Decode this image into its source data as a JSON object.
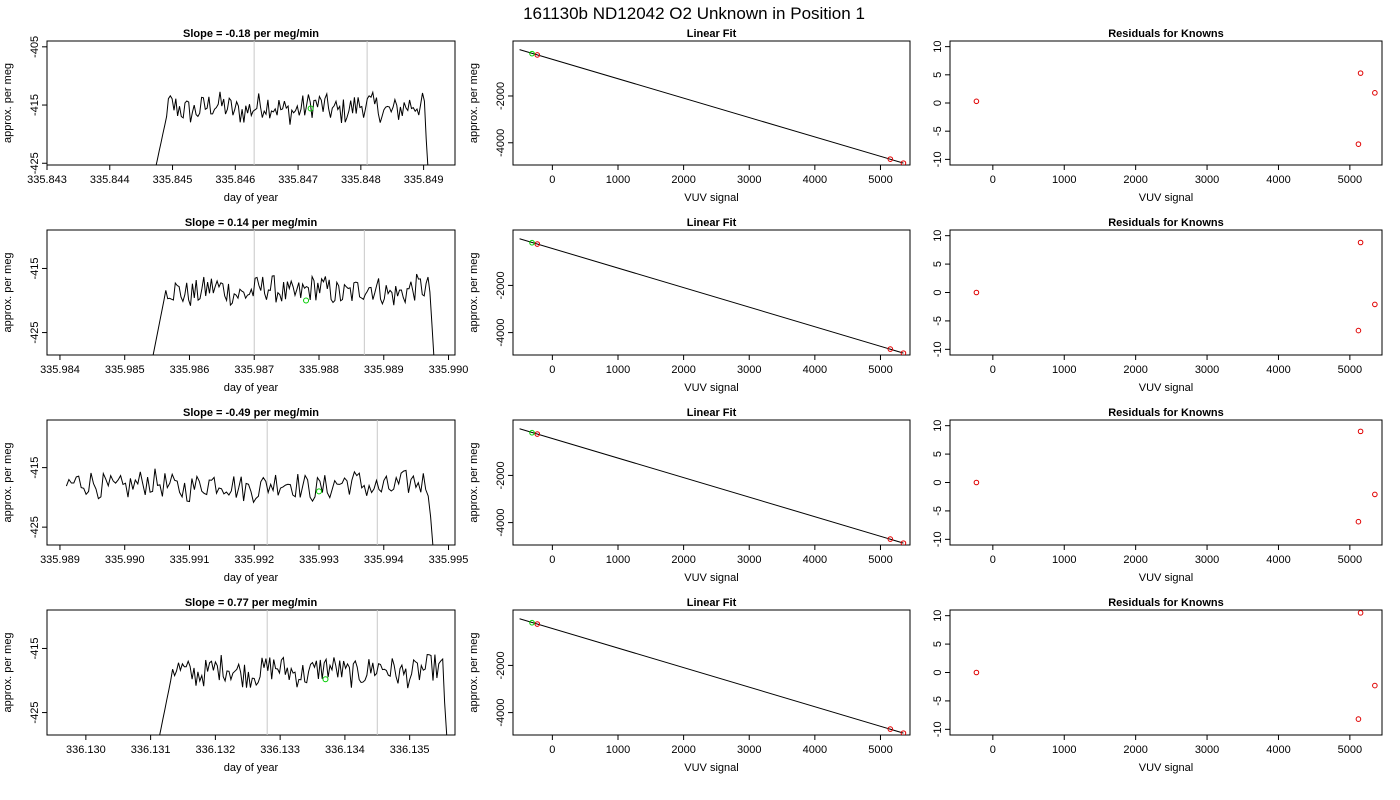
{
  "figure": {
    "title": "161130b     ND12042   O2 Unknown in Position  1"
  },
  "chart_data": [
    {
      "panel": "row1-trace",
      "type": "line",
      "title": "Slope =  -0.18  per meg/min",
      "xlabel": "day of year",
      "ylabel": "approx. per meg",
      "xlim": [
        335.843,
        335.8495
      ],
      "ylim": [
        -425.3,
        -404.0
      ],
      "xticks": [
        "335.843",
        "335.844",
        "335.845",
        "335.846",
        "335.847",
        "335.848",
        "335.849"
      ],
      "yticks": [
        "-405",
        "-415",
        "-425"
      ],
      "vlines": [
        335.8463,
        335.8481
      ],
      "trace_start": 335.8447,
      "trace_end": 335.8491,
      "trace_level": -415.5,
      "green_marker": {
        "x": 335.8472,
        "y": -415.6
      },
      "grid": false,
      "legend": "none"
    },
    {
      "panel": "row1-fit",
      "type": "scatter",
      "title": "Linear Fit",
      "xlabel": "VUV signal",
      "ylabel": "approx. per meg",
      "xlim": [
        -600,
        5450
      ],
      "ylim": [
        -4950,
        350
      ],
      "xticks": [
        "0",
        "1000",
        "2000",
        "3000",
        "4000",
        "5000"
      ],
      "yticks": [
        "-2000",
        "-4000"
      ],
      "fit_line": {
        "x": [
          -500,
          5350
        ],
        "y": [
          -20,
          -4870
        ]
      },
      "knowns": [
        {
          "x": -230,
          "y": -245
        },
        {
          "x": 5150,
          "y": -4700
        },
        {
          "x": 5350,
          "y": -4870
        }
      ],
      "unknown": {
        "x": -310,
        "y": -190
      },
      "grid": false,
      "legend": "none"
    },
    {
      "panel": "row1-resid",
      "type": "scatter",
      "title": "Residuals for Knowns",
      "xlabel": "VUV signal",
      "ylabel": "",
      "xlim": [
        -600,
        5450
      ],
      "ylim": [
        -11,
        11
      ],
      "xticks": [
        "0",
        "1000",
        "2000",
        "3000",
        "4000",
        "5000"
      ],
      "yticks": [
        "10",
        "5",
        "0",
        "-5",
        "-10"
      ],
      "points": [
        {
          "x": -230,
          "y": 0.3
        },
        {
          "x": 5150,
          "y": 5.3
        },
        {
          "x": 5350,
          "y": 1.8
        },
        {
          "x": 5120,
          "y": -7.3
        }
      ],
      "grid": false,
      "legend": "none"
    },
    {
      "panel": "row2-trace",
      "type": "line",
      "title": "Slope =  0.14  per meg/min",
      "xlabel": "day of year",
      "ylabel": "approx. per meg",
      "xlim": [
        335.9838,
        335.9901
      ],
      "ylim": [
        -428.5,
        -409.0
      ],
      "xticks": [
        "335.984",
        "335.985",
        "335.986",
        "335.987",
        "335.988",
        "335.989",
        "335.990"
      ],
      "yticks": [
        "-415",
        "-425"
      ],
      "vlines": [
        335.987,
        335.9887
      ],
      "trace_start": 335.9854,
      "trace_end": 335.9898,
      "trace_level": -418.5,
      "green_marker": {
        "x": 335.9878,
        "y": -420.0
      },
      "grid": false,
      "legend": "none"
    },
    {
      "panel": "row2-fit",
      "type": "scatter",
      "title": "Linear Fit",
      "xlabel": "VUV signal",
      "ylabel": "approx. per meg",
      "xlim": [
        -600,
        5450
      ],
      "ylim": [
        -4950,
        350
      ],
      "xticks": [
        "0",
        "1000",
        "2000",
        "3000",
        "4000",
        "5000"
      ],
      "yticks": [
        "-2000",
        "-4000"
      ],
      "fit_line": {
        "x": [
          -500,
          5350
        ],
        "y": [
          -20,
          -4870
        ]
      },
      "knowns": [
        {
          "x": -230,
          "y": -245
        },
        {
          "x": 5150,
          "y": -4700
        },
        {
          "x": 5350,
          "y": -4870
        }
      ],
      "unknown": {
        "x": -310,
        "y": -190
      },
      "grid": false,
      "legend": "none"
    },
    {
      "panel": "row2-resid",
      "type": "scatter",
      "title": "Residuals for Knowns",
      "xlabel": "VUV signal",
      "ylabel": "",
      "xlim": [
        -600,
        5450
      ],
      "ylim": [
        -11,
        11
      ],
      "xticks": [
        "0",
        "1000",
        "2000",
        "3000",
        "4000",
        "5000"
      ],
      "yticks": [
        "10",
        "5",
        "0",
        "-5",
        "-10"
      ],
      "points": [
        {
          "x": -230,
          "y": 0.0
        },
        {
          "x": 5150,
          "y": 8.8
        },
        {
          "x": 5350,
          "y": -2.1
        },
        {
          "x": 5120,
          "y": -6.7
        }
      ],
      "grid": false,
      "legend": "none"
    },
    {
      "panel": "row3-trace",
      "type": "line",
      "title": "Slope =  -0.49  per meg/min",
      "xlabel": "day of year",
      "ylabel": "approx. per meg",
      "xlim": [
        335.9888,
        335.9951
      ],
      "ylim": [
        -428.0,
        -407.0
      ],
      "xticks": [
        "335.989",
        "335.990",
        "335.991",
        "335.992",
        "335.993",
        "335.994",
        "335.995"
      ],
      "yticks": [
        "-415",
        "-425"
      ],
      "vlines": [
        335.9922,
        335.9939
      ],
      "trace_start": 335.9891,
      "trace_end": 335.9948,
      "trace_level": -418.0,
      "green_marker": {
        "x": 335.993,
        "y": -419.0
      },
      "grid": false,
      "legend": "none"
    },
    {
      "panel": "row3-fit",
      "type": "scatter",
      "title": "Linear Fit",
      "xlabel": "VUV signal",
      "ylabel": "approx. per meg",
      "xlim": [
        -600,
        5450
      ],
      "ylim": [
        -4950,
        350
      ],
      "xticks": [
        "0",
        "1000",
        "2000",
        "3000",
        "4000",
        "5000"
      ],
      "yticks": [
        "-2000",
        "-4000"
      ],
      "fit_line": {
        "x": [
          -500,
          5350
        ],
        "y": [
          -20,
          -4870
        ]
      },
      "knowns": [
        {
          "x": -230,
          "y": -245
        },
        {
          "x": 5150,
          "y": -4700
        },
        {
          "x": 5350,
          "y": -4870
        }
      ],
      "unknown": {
        "x": -310,
        "y": -190
      },
      "grid": false,
      "legend": "none"
    },
    {
      "panel": "row3-resid",
      "type": "scatter",
      "title": "Residuals for Knowns",
      "xlabel": "VUV signal",
      "ylabel": "",
      "xlim": [
        -600,
        5450
      ],
      "ylim": [
        -11,
        11
      ],
      "xticks": [
        "0",
        "1000",
        "2000",
        "3000",
        "4000",
        "5000"
      ],
      "yticks": [
        "10",
        "5",
        "0",
        "-5",
        "-10"
      ],
      "points": [
        {
          "x": -230,
          "y": 0.0
        },
        {
          "x": 5150,
          "y": 9.0
        },
        {
          "x": 5350,
          "y": -2.1
        },
        {
          "x": 5120,
          "y": -6.9
        }
      ],
      "grid": false,
      "legend": "none"
    },
    {
      "panel": "row4-trace",
      "type": "line",
      "title": "Slope =  0.77  per meg/min",
      "xlabel": "day of year",
      "ylabel": "approx. per meg",
      "xlim": [
        336.1294,
        336.1357
      ],
      "ylim": [
        -428.5,
        -409.0
      ],
      "xticks": [
        "336.130",
        "336.131",
        "336.132",
        "336.133",
        "336.134",
        "336.135"
      ],
      "yticks": [
        "-415",
        "-425"
      ],
      "vlines": [
        336.1328,
        336.1345
      ],
      "trace_start": 336.1311,
      "trace_end": 336.1356,
      "trace_level": -418.5,
      "green_marker": {
        "x": 336.1337,
        "y": -419.8
      },
      "grid": false,
      "legend": "none"
    },
    {
      "panel": "row4-fit",
      "type": "scatter",
      "title": "Linear Fit",
      "xlabel": "VUV signal",
      "ylabel": "approx. per meg",
      "xlim": [
        -600,
        5450
      ],
      "ylim": [
        -4950,
        350
      ],
      "xticks": [
        "0",
        "1000",
        "2000",
        "3000",
        "4000",
        "5000"
      ],
      "yticks": [
        "-2000",
        "-4000"
      ],
      "fit_line": {
        "x": [
          -500,
          5350
        ],
        "y": [
          -20,
          -4870
        ]
      },
      "knowns": [
        {
          "x": -230,
          "y": -245
        },
        {
          "x": 5150,
          "y": -4700
        },
        {
          "x": 5350,
          "y": -4870
        }
      ],
      "unknown": {
        "x": -310,
        "y": -190
      },
      "grid": false,
      "legend": "none"
    },
    {
      "panel": "row4-resid",
      "type": "scatter",
      "title": "Residuals for Knowns",
      "xlabel": "VUV signal",
      "ylabel": "",
      "xlim": [
        -600,
        5450
      ],
      "ylim": [
        -11,
        11
      ],
      "xticks": [
        "0",
        "1000",
        "2000",
        "3000",
        "4000",
        "5000"
      ],
      "yticks": [
        "10",
        "5",
        "0",
        "-5",
        "-10"
      ],
      "points": [
        {
          "x": -230,
          "y": 0.0
        },
        {
          "x": 5150,
          "y": 10.5
        },
        {
          "x": 5350,
          "y": -2.3
        },
        {
          "x": 5120,
          "y": -8.2
        }
      ],
      "grid": false,
      "legend": "none"
    }
  ],
  "colors": {
    "axis": "#000000",
    "trace": "#000000",
    "vline": "#c8c8c8",
    "known_marker": "#e00000",
    "unknown_marker": "#00cc00",
    "fit_line": "#000000"
  }
}
